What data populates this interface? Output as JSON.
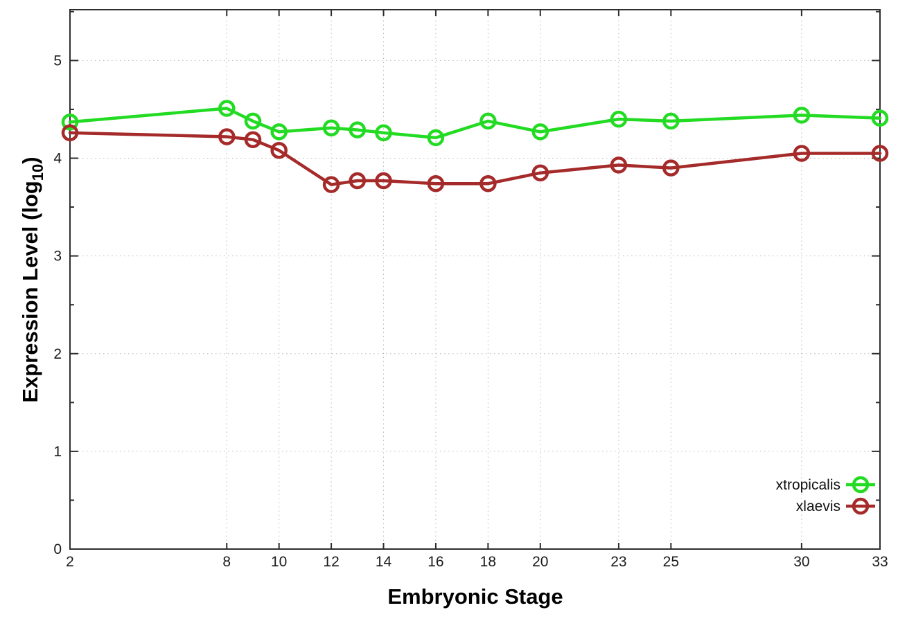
{
  "chart_data": {
    "type": "line",
    "title": "",
    "xlabel": "Embryonic Stage",
    "ylabel": "Expression Level (log10)",
    "ylabel_parts": {
      "prefix": "Expression Level (log",
      "subscript": "10",
      "suffix": ")"
    },
    "x": [
      2,
      8,
      9,
      10,
      12,
      13,
      14,
      16,
      18,
      20,
      23,
      25,
      30,
      33
    ],
    "series": [
      {
        "name": "xtropicalis",
        "color": "#22DB22",
        "values": [
          4.37,
          4.51,
          4.38,
          4.27,
          4.31,
          4.29,
          4.26,
          4.21,
          4.38,
          4.27,
          4.4,
          4.38,
          4.44,
          4.41
        ]
      },
      {
        "name": "xlaevis",
        "color": "#A52A2A",
        "values": [
          4.26,
          4.22,
          4.19,
          4.08,
          3.73,
          3.77,
          3.77,
          3.74,
          3.74,
          3.85,
          3.93,
          3.9,
          4.05,
          4.05
        ]
      }
    ],
    "xticks": [
      2,
      8,
      10,
      12,
      14,
      16,
      18,
      20,
      23,
      25,
      30,
      33
    ],
    "yticks": [
      0,
      1,
      2,
      3,
      4,
      5
    ],
    "y_minor_step": 0.5,
    "xlim": [
      2,
      33
    ],
    "ylim": [
      0,
      5.52
    ],
    "grid": true,
    "grid_color": "#b8b8b8",
    "axis_color": "#2d2d2d",
    "legend_position": "inside-right-bottom",
    "marker": "open-circle"
  }
}
